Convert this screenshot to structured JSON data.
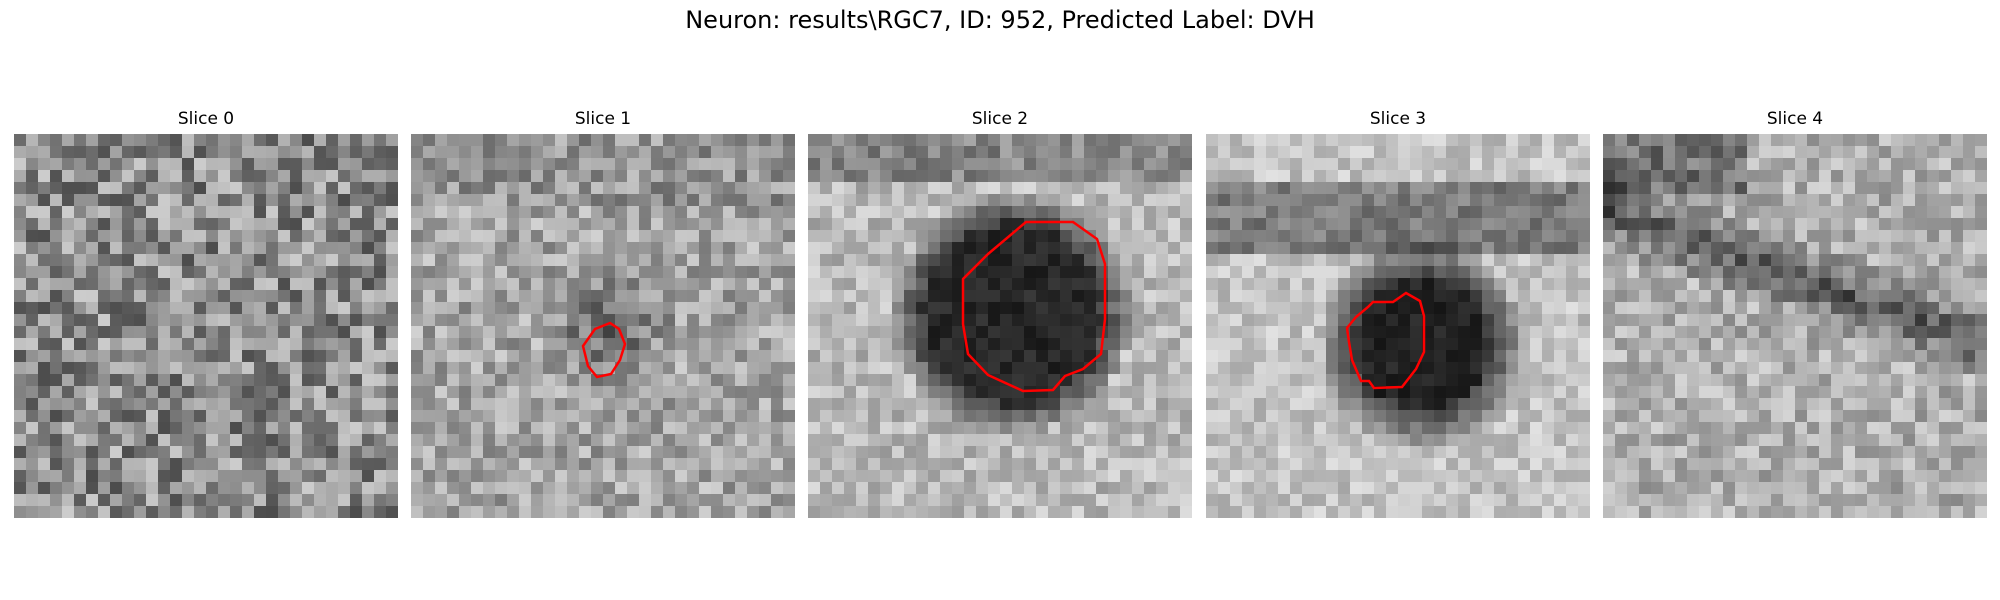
{
  "figure": {
    "title": "Neuron: results\\RGC7, ID: 952, Predicted Label: DVH"
  },
  "panels": [
    {
      "title": "Slice 0"
    },
    {
      "title": "Slice 1"
    },
    {
      "title": "Slice 2"
    },
    {
      "title": "Slice 3"
    },
    {
      "title": "Slice 4"
    }
  ],
  "colors": {
    "contour": "#ff0000"
  }
}
